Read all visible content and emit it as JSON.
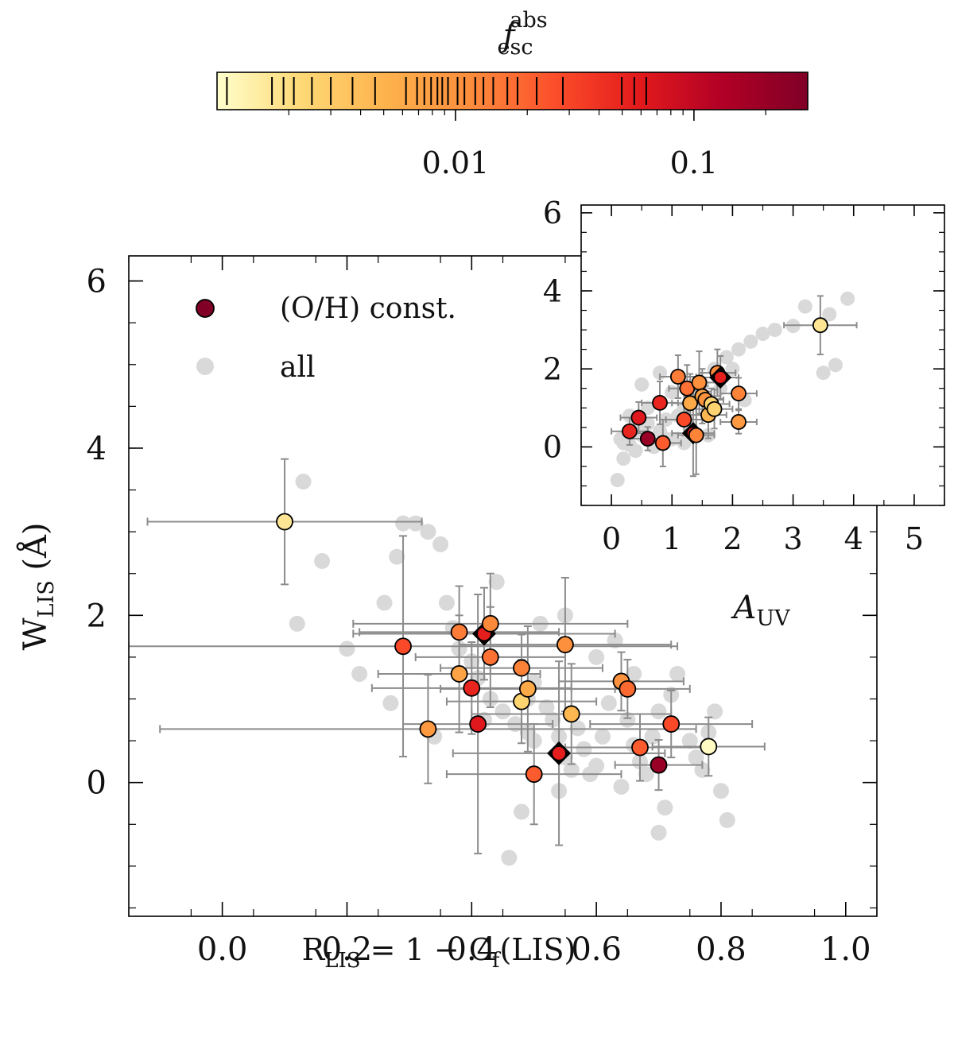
{
  "colorbar": {
    "label_base": "f",
    "label_sup": "abs",
    "label_sub": "esc",
    "scale": "log",
    "range": [
      0.001,
      0.3
    ],
    "ticks": [
      {
        "value": 0.01,
        "label": "0.01"
      },
      {
        "value": 0.1,
        "label": "0.1"
      }
    ],
    "stops": [
      "#ffffcc",
      "#fed976",
      "#feb24c",
      "#fd8d3c",
      "#fc4e2a",
      "#e31a1c",
      "#b10026",
      "#800026"
    ],
    "marker_values": [
      0.0011,
      0.0017,
      0.0019,
      0.0021,
      0.0025,
      0.003,
      0.0037,
      0.0046,
      0.0062,
      0.0069,
      0.0074,
      0.0079,
      0.0084,
      0.0088,
      0.0093,
      0.0102,
      0.0109,
      0.0121,
      0.0131,
      0.0144,
      0.0165,
      0.0182,
      0.0219,
      0.0282,
      0.0498,
      0.0562,
      0.0631
    ]
  },
  "chart_data": [
    {
      "type": "scatter",
      "name": "main",
      "xlabel_base": "R",
      "xlabel_sub": "LIS",
      "xlabel_rest": " = 1 − C",
      "xlabel_sub2": "f",
      "xlabel_tail": "(LIS)",
      "ylabel_base": "W",
      "ylabel_sub": "LIS",
      "ylabel_tail": " (Å)",
      "xlim": [
        -0.15,
        1.05
      ],
      "ylim": [
        -1.6,
        6.3
      ],
      "xticks": [
        {
          "value": 0.0,
          "label": "0.0"
        },
        {
          "value": 0.2,
          "label": "0.2"
        },
        {
          "value": 0.4,
          "label": "0.4"
        },
        {
          "value": 0.6,
          "label": "0.6"
        },
        {
          "value": 0.8,
          "label": "0.8"
        },
        {
          "value": 1.0,
          "label": "1.0"
        }
      ],
      "yticks": [
        {
          "value": 0,
          "label": "0"
        },
        {
          "value": 2,
          "label": "2"
        },
        {
          "value": 4,
          "label": "4"
        },
        {
          "value": 6,
          "label": "6"
        }
      ],
      "legend": {
        "position": "top-left",
        "entries": [
          {
            "label": "(O/H) const.",
            "color": "#800026",
            "style": "circle-edge"
          },
          {
            "label": "all",
            "color": "#d9d9d9",
            "style": "circle"
          }
        ]
      },
      "all_points": [
        [
          0.13,
          3.6
        ],
        [
          0.16,
          2.65
        ],
        [
          0.12,
          1.9
        ],
        [
          0.2,
          1.6
        ],
        [
          0.22,
          1.3
        ],
        [
          0.26,
          2.15
        ],
        [
          0.28,
          2.7
        ],
        [
          0.29,
          3.1
        ],
        [
          0.31,
          3.1
        ],
        [
          0.33,
          3.0
        ],
        [
          0.35,
          2.85
        ],
        [
          0.27,
          0.95
        ],
        [
          0.36,
          2.15
        ],
        [
          0.37,
          1.85
        ],
        [
          0.38,
          1.6
        ],
        [
          0.4,
          1.45
        ],
        [
          0.41,
          1.25
        ],
        [
          0.43,
          1.0
        ],
        [
          0.45,
          0.85
        ],
        [
          0.47,
          0.7
        ],
        [
          0.49,
          0.6
        ],
        [
          0.5,
          0.5
        ],
        [
          0.52,
          0.9
        ],
        [
          0.53,
          0.75
        ],
        [
          0.54,
          0.55
        ],
        [
          0.55,
          0.3
        ],
        [
          0.56,
          0.15
        ],
        [
          0.57,
          0.65
        ],
        [
          0.58,
          0.4
        ],
        [
          0.6,
          0.2
        ],
        [
          0.61,
          0.55
        ],
        [
          0.62,
          0.95
        ],
        [
          0.63,
          1.7
        ],
        [
          0.55,
          2.0
        ],
        [
          0.6,
          1.5
        ],
        [
          0.65,
          0.75
        ],
        [
          0.66,
          0.45
        ],
        [
          0.67,
          0.25
        ],
        [
          0.68,
          0.1
        ],
        [
          0.69,
          0.55
        ],
        [
          0.7,
          0.85
        ],
        [
          0.72,
          1.05
        ],
        [
          0.73,
          1.3
        ],
        [
          0.75,
          0.5
        ],
        [
          0.76,
          0.3
        ],
        [
          0.77,
          0.15
        ],
        [
          0.78,
          0.6
        ],
        [
          0.79,
          0.85
        ],
        [
          0.8,
          -0.1
        ],
        [
          0.81,
          -0.45
        ],
        [
          0.7,
          -0.6
        ],
        [
          0.71,
          -0.3
        ],
        [
          0.48,
          -0.35
        ],
        [
          0.46,
          -0.9
        ],
        [
          0.54,
          -0.1
        ],
        [
          0.59,
          0.1
        ],
        [
          0.64,
          -0.05
        ],
        [
          0.66,
          1.3
        ],
        [
          0.51,
          1.9
        ],
        [
          0.49,
          1.0
        ],
        [
          0.42,
          0.75
        ],
        [
          0.34,
          0.55
        ],
        [
          0.44,
          2.4
        ],
        [
          0.5,
          1.2
        ]
      ],
      "points": [
        {
          "x": 0.1,
          "y": 3.12,
          "xerr": 0.22,
          "yerr": 0.75,
          "f": 0.0017,
          "marker": "circle"
        },
        {
          "x": 0.29,
          "y": 1.63,
          "xerr": 0.44,
          "yerr": 1.32,
          "f": 0.0282,
          "marker": "circle"
        },
        {
          "x": 0.33,
          "y": 0.64,
          "xerr": 0.43,
          "yerr": 0.65,
          "f": 0.0088,
          "marker": "circle"
        },
        {
          "x": 0.38,
          "y": 1.8,
          "xerr": 0.16,
          "yerr": 0.55,
          "f": 0.0144,
          "marker": "circle"
        },
        {
          "x": 0.38,
          "y": 1.3,
          "xerr": 0.13,
          "yerr": 0.7,
          "f": 0.0069,
          "marker": "circle"
        },
        {
          "x": 0.4,
          "y": 1.13,
          "xerr": 0.16,
          "yerr": 0.55,
          "f": 0.0498,
          "marker": "circle"
        },
        {
          "x": 0.41,
          "y": 0.7,
          "xerr": 0.12,
          "yerr": 1.55,
          "f": 0.0631,
          "marker": "circle"
        },
        {
          "x": 0.42,
          "y": 1.78,
          "xerr": 0.21,
          "yerr": 0.55,
          "f": 0.0562,
          "marker": "diamond"
        },
        {
          "x": 0.43,
          "y": 1.9,
          "xerr": 0.22,
          "yerr": 0.6,
          "f": 0.0121,
          "marker": "circle"
        },
        {
          "x": 0.43,
          "y": 1.5,
          "xerr": 0.12,
          "yerr": 0.6,
          "f": 0.0165,
          "marker": "circle"
        },
        {
          "x": 0.48,
          "y": 1.37,
          "xerr": 0.13,
          "yerr": 0.4,
          "f": 0.0131,
          "marker": "circle"
        },
        {
          "x": 0.48,
          "y": 0.97,
          "xerr": 0.12,
          "yerr": 0.5,
          "f": 0.0025,
          "marker": "circle"
        },
        {
          "x": 0.49,
          "y": 1.12,
          "xerr": 0.14,
          "yerr": 0.75,
          "f": 0.0062,
          "marker": "circle"
        },
        {
          "x": 0.5,
          "y": 0.1,
          "xerr": 0.14,
          "yerr": 0.6,
          "f": 0.0219,
          "marker": "circle"
        },
        {
          "x": 0.54,
          "y": 0.35,
          "xerr": 0.17,
          "yerr": 1.1,
          "f": 0.0565,
          "marker": "diamond"
        },
        {
          "x": 0.55,
          "y": 1.65,
          "xerr": 0.17,
          "yerr": 0.8,
          "f": 0.0109,
          "marker": "circle"
        },
        {
          "x": 0.56,
          "y": 0.82,
          "xerr": 0.16,
          "yerr": 0.6,
          "f": 0.0046,
          "marker": "circle"
        },
        {
          "x": 0.64,
          "y": 1.21,
          "xerr": 0.1,
          "yerr": 0.35,
          "f": 0.0102,
          "marker": "circle"
        },
        {
          "x": 0.65,
          "y": 1.12,
          "xerr": 0.1,
          "yerr": 0.35,
          "f": 0.0182,
          "marker": "circle"
        },
        {
          "x": 0.67,
          "y": 0.42,
          "xerr": 0.12,
          "yerr": 0.4,
          "f": 0.0219,
          "marker": "circle"
        },
        {
          "x": 0.7,
          "y": 0.21,
          "xerr": 0.07,
          "yerr": 0.3,
          "f": 0.2,
          "marker": "circle"
        },
        {
          "x": 0.72,
          "y": 0.7,
          "xerr": 0.13,
          "yerr": 0.4,
          "f": 0.0282,
          "marker": "circle"
        },
        {
          "x": 0.78,
          "y": 0.43,
          "xerr": 0.09,
          "yerr": 0.35,
          "f": 0.0011,
          "marker": "circle"
        }
      ]
    },
    {
      "type": "scatter",
      "name": "inset",
      "xlabel_base": "A",
      "xlabel_sub": "UV",
      "xlim": [
        -0.5,
        5.5
      ],
      "ylim": [
        -1.5,
        6.2
      ],
      "xticks": [
        {
          "value": 0,
          "label": "0"
        },
        {
          "value": 1,
          "label": "1"
        },
        {
          "value": 2,
          "label": "2"
        },
        {
          "value": 3,
          "label": "3"
        },
        {
          "value": 4,
          "label": "4"
        },
        {
          "value": 5,
          "label": "5"
        }
      ],
      "yticks": [
        {
          "value": 0,
          "label": "0"
        },
        {
          "value": 2,
          "label": "2"
        },
        {
          "value": 4,
          "label": "4"
        },
        {
          "value": 6,
          "label": "6"
        }
      ],
      "all_points": [
        [
          0.1,
          -0.85
        ],
        [
          0.2,
          -0.3
        ],
        [
          0.3,
          0.05
        ],
        [
          0.15,
          0.2
        ],
        [
          0.4,
          -0.1
        ],
        [
          0.5,
          0.3
        ],
        [
          0.6,
          0.6
        ],
        [
          0.7,
          0.0
        ],
        [
          0.8,
          0.4
        ],
        [
          0.9,
          0.7
        ],
        [
          1.0,
          0.2
        ],
        [
          1.1,
          0.8
        ],
        [
          1.2,
          1.0
        ],
        [
          1.3,
          0.5
        ],
        [
          1.4,
          1.3
        ],
        [
          1.5,
          1.6
        ],
        [
          1.6,
          1.2
        ],
        [
          1.7,
          2.0
        ],
        [
          1.8,
          1.5
        ],
        [
          1.9,
          2.3
        ],
        [
          2.0,
          2.0
        ],
        [
          2.1,
          2.5
        ],
        [
          2.3,
          2.7
        ],
        [
          2.5,
          2.9
        ],
        [
          2.7,
          3.0
        ],
        [
          3.0,
          3.1
        ],
        [
          3.2,
          3.6
        ],
        [
          3.6,
          3.4
        ],
        [
          3.9,
          3.8
        ],
        [
          3.7,
          2.1
        ],
        [
          3.5,
          1.9
        ],
        [
          0.3,
          0.8
        ],
        [
          0.5,
          1.6
        ],
        [
          0.8,
          1.9
        ],
        [
          1.0,
          1.4
        ],
        [
          1.2,
          0.1
        ],
        [
          0.9,
          0.2
        ],
        [
          0.6,
          1.0
        ],
        [
          2.2,
          1.2
        ],
        [
          1.6,
          0.3
        ],
        [
          0.4,
          0.5
        ],
        [
          0.2,
          0.1
        ]
      ],
      "points": [
        {
          "x": 3.45,
          "y": 3.12,
          "xerr": 0.6,
          "yerr": 0.75,
          "f": 0.0017,
          "marker": "circle"
        },
        {
          "x": 0.3,
          "y": 0.4,
          "xerr": 0.3,
          "yerr": 0.35,
          "f": 0.0498,
          "marker": "circle"
        },
        {
          "x": 0.45,
          "y": 0.75,
          "xerr": 0.3,
          "yerr": 0.4,
          "f": 0.0631,
          "marker": "circle"
        },
        {
          "x": 0.6,
          "y": 0.21,
          "xerr": 0.3,
          "yerr": 0.3,
          "f": 0.2,
          "marker": "circle"
        },
        {
          "x": 0.8,
          "y": 1.13,
          "xerr": 0.3,
          "yerr": 0.55,
          "f": 0.0498,
          "marker": "circle"
        },
        {
          "x": 0.85,
          "y": 0.1,
          "xerr": 0.3,
          "yerr": 0.6,
          "f": 0.0219,
          "marker": "circle"
        },
        {
          "x": 1.1,
          "y": 1.8,
          "xerr": 0.3,
          "yerr": 0.55,
          "f": 0.0144,
          "marker": "circle"
        },
        {
          "x": 1.2,
          "y": 0.7,
          "xerr": 0.3,
          "yerr": 0.4,
          "f": 0.0282,
          "marker": "circle"
        },
        {
          "x": 1.25,
          "y": 1.5,
          "xerr": 0.3,
          "yerr": 0.6,
          "f": 0.0165,
          "marker": "circle"
        },
        {
          "x": 1.3,
          "y": 1.12,
          "xerr": 0.3,
          "yerr": 0.75,
          "f": 0.0062,
          "marker": "circle"
        },
        {
          "x": 1.35,
          "y": 0.35,
          "xerr": 0.35,
          "yerr": 1.1,
          "f": 0.0565,
          "marker": "diamond"
        },
        {
          "x": 1.4,
          "y": 0.3,
          "xerr": 0.3,
          "yerr": 1.0,
          "f": 0.0131,
          "marker": "circle"
        },
        {
          "x": 1.45,
          "y": 1.65,
          "xerr": 0.3,
          "yerr": 0.8,
          "f": 0.0109,
          "marker": "circle"
        },
        {
          "x": 1.5,
          "y": 1.3,
          "xerr": 0.3,
          "yerr": 0.7,
          "f": 0.0069,
          "marker": "circle"
        },
        {
          "x": 1.55,
          "y": 1.21,
          "xerr": 0.3,
          "yerr": 0.35,
          "f": 0.0102,
          "marker": "circle"
        },
        {
          "x": 1.6,
          "y": 0.82,
          "xerr": 0.3,
          "yerr": 0.6,
          "f": 0.0046,
          "marker": "circle"
        },
        {
          "x": 1.65,
          "y": 1.1,
          "xerr": 0.3,
          "yerr": 0.4,
          "f": 0.0025,
          "marker": "circle"
        },
        {
          "x": 1.7,
          "y": 0.97,
          "xerr": 0.3,
          "yerr": 0.5,
          "f": 0.0025,
          "marker": "circle"
        },
        {
          "x": 1.75,
          "y": 1.9,
          "xerr": 0.3,
          "yerr": 0.6,
          "f": 0.0121,
          "marker": "circle"
        },
        {
          "x": 1.8,
          "y": 1.78,
          "xerr": 0.3,
          "yerr": 0.55,
          "f": 0.0562,
          "marker": "diamond"
        },
        {
          "x": 2.1,
          "y": 1.37,
          "xerr": 0.3,
          "yerr": 0.4,
          "f": 0.0131,
          "marker": "circle"
        },
        {
          "x": 2.1,
          "y": 0.64,
          "xerr": 0.3,
          "yerr": 0.3,
          "f": 0.0088,
          "marker": "circle"
        }
      ]
    }
  ]
}
